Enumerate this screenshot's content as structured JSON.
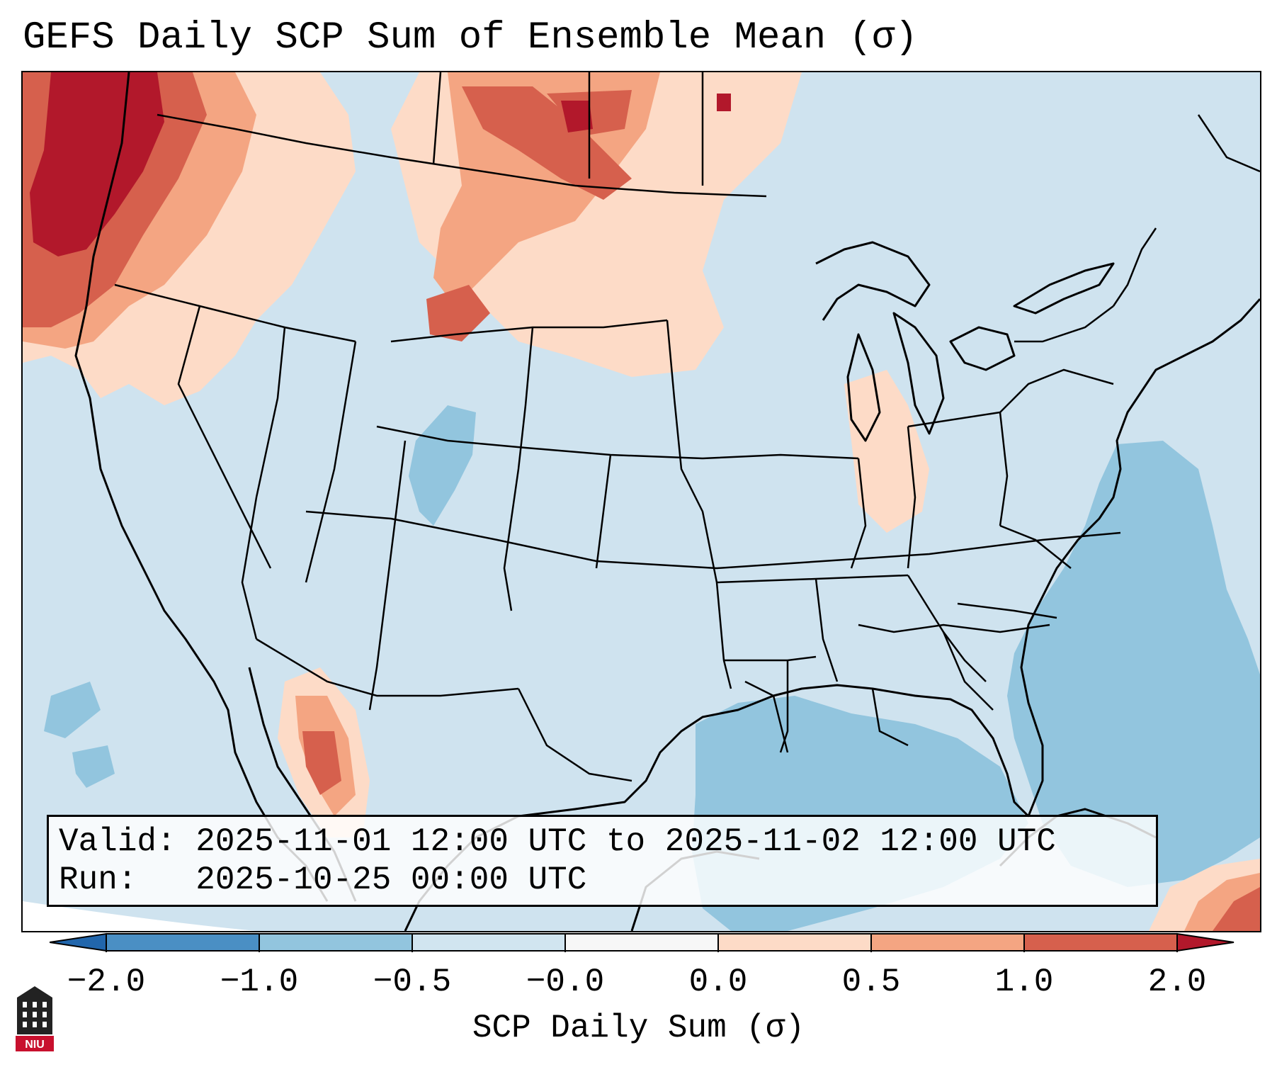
{
  "title": "GEFS Daily SCP Sum of Ensemble Mean (σ)",
  "info": {
    "valid_label": "Valid:",
    "valid_value": "2025-11-01 12:00 UTC to 2025-11-02 12:00 UTC",
    "run_label": "Run:",
    "run_value": "2025-10-25 00:00 UTC"
  },
  "colorbar": {
    "label": "SCP Daily Sum (σ)",
    "ticks": [
      "−2.0",
      "−1.0",
      "−0.5",
      "−0.0",
      "0.0",
      "0.5",
      "1.0",
      "2.0"
    ],
    "colors": [
      "#4a8fc4",
      "#92c5de",
      "#d1e5f0",
      "#f7f7f7",
      "#fddbc7",
      "#f4a582",
      "#d6604d",
      "#b2182b"
    ]
  },
  "logo": {
    "text": "NIU"
  }
}
